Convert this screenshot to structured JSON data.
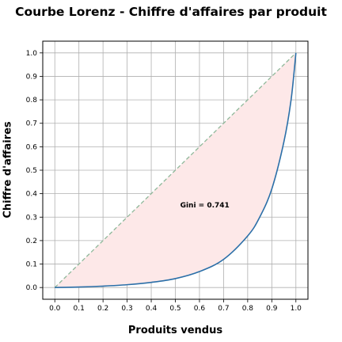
{
  "chart_data": {
    "type": "line",
    "title": "Courbe Lorenz - Chiffre d'affaires par produit",
    "xlabel": "Produits vendus",
    "ylabel": "Chiffre d'affaires",
    "xlim": [
      -0.05,
      1.05
    ],
    "ylim": [
      -0.05,
      1.05
    ],
    "x_ticks": [
      0.0,
      0.1,
      0.2,
      0.3,
      0.4,
      0.5,
      0.6,
      0.7,
      0.8,
      0.9,
      1.0
    ],
    "y_ticks": [
      0.0,
      0.1,
      0.2,
      0.3,
      0.4,
      0.5,
      0.6,
      0.7,
      0.8,
      0.9,
      1.0
    ],
    "x_tick_labels": [
      "0.0",
      "0.1",
      "0.2",
      "0.3",
      "0.4",
      "0.5",
      "0.6",
      "0.7",
      "0.8",
      "0.9",
      "1.0"
    ],
    "y_tick_labels": [
      "0.0",
      "0.1",
      "0.2",
      "0.3",
      "0.4",
      "0.5",
      "0.6",
      "0.7",
      "0.8",
      "0.9",
      "1.0"
    ],
    "grid": true,
    "series": [
      {
        "color": "#2b6fa8",
        "style": "solid",
        "x": [
          0.0,
          0.1,
          0.2,
          0.3,
          0.4,
          0.5,
          0.6,
          0.7,
          0.8,
          0.85,
          0.9,
          0.95,
          0.98,
          1.0
        ],
        "y": [
          0.0,
          0.002,
          0.006,
          0.012,
          0.022,
          0.038,
          0.068,
          0.12,
          0.22,
          0.3,
          0.42,
          0.62,
          0.8,
          1.0
        ]
      },
      {
        "color": "#8fb89a",
        "style": "dashed",
        "x": [
          0.0,
          1.0
        ],
        "y": [
          0.0,
          1.0
        ]
      }
    ],
    "fill_between": {
      "color": "#fde8e8"
    },
    "annotations": [
      {
        "text": "Gini = 0.741",
        "x": 0.52,
        "y": 0.355
      }
    ]
  }
}
